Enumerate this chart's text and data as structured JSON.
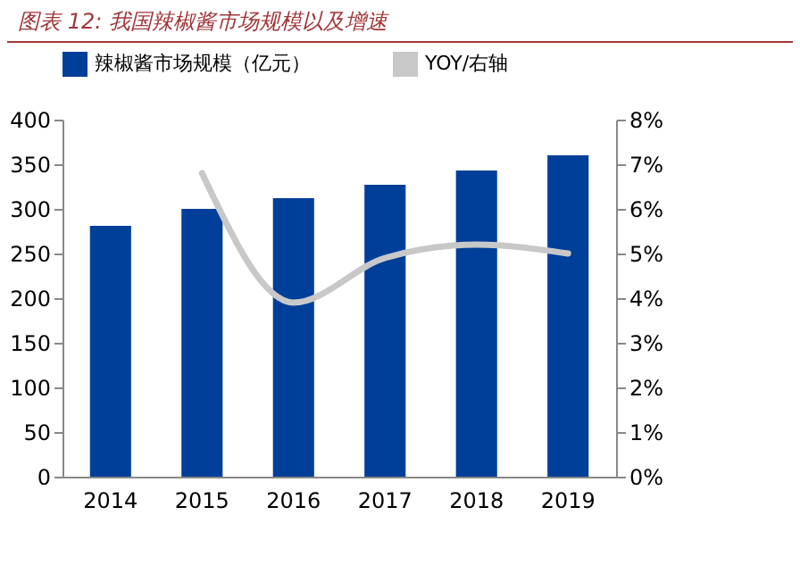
{
  "chart_data": {
    "type": "bar",
    "title": "图表 12: 我国辣椒酱市场规模以及增速",
    "categories": [
      "2014",
      "2015",
      "2016",
      "2017",
      "2018",
      "2019"
    ],
    "series": [
      {
        "name": "辣椒酱市场规模（亿元）",
        "color": "#003f99",
        "values": [
          281,
          300,
          312,
          327,
          343,
          360
        ]
      },
      {
        "name": "YOY/右轴",
        "type": "line",
        "axis": "y2",
        "color": "#c8c8c8",
        "values": [
          null,
          6.8,
          3.9,
          4.9,
          5.2,
          5.0
        ]
      }
    ],
    "ylim": [
      0,
      400
    ],
    "yticks": [
      0,
      50,
      100,
      150,
      200,
      250,
      300,
      350,
      400
    ],
    "y2lim": [
      0,
      8
    ],
    "y2ticks": [
      {
        "value": 0,
        "label": "0%"
      },
      {
        "value": 1,
        "label": "1%"
      },
      {
        "value": 2,
        "label": "2%"
      },
      {
        "value": 3,
        "label": "3%"
      },
      {
        "value": 4,
        "label": "4%"
      },
      {
        "value": 5,
        "label": "5%"
      },
      {
        "value": 6,
        "label": "6%"
      },
      {
        "value": 7,
        "label": "7%"
      },
      {
        "value": 8,
        "label": "8%"
      }
    ],
    "legend": "top",
    "grid": false
  }
}
